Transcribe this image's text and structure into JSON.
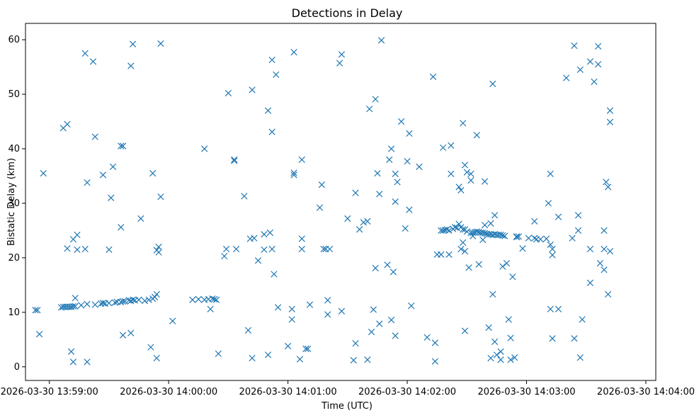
{
  "chart_data": {
    "type": "scatter",
    "title": "Detections in Delay",
    "xlabel": "Time (UTC)",
    "ylabel": "Bistatic Delay (km)",
    "marker": "x",
    "color": "#1f77b4",
    "x_unit": "seconds after 2026-03-30 13:59:00",
    "xlim": [
      -12,
      305
    ],
    "ylim": [
      -2.5,
      63
    ],
    "x_ticks": [
      {
        "value": 0,
        "label": "2026-03-30 13:59:00"
      },
      {
        "value": 60,
        "label": "2026-03-30 14:00:00"
      },
      {
        "value": 120,
        "label": "2026-03-30 14:01:00"
      },
      {
        "value": 180,
        "label": "2026-03-30 14:02:00"
      },
      {
        "value": 240,
        "label": "2026-03-30 14:03:00"
      },
      {
        "value": 300,
        "label": "2026-03-30 14:04:00"
      }
    ],
    "y_ticks": [
      {
        "value": 0,
        "label": "0"
      },
      {
        "value": 10,
        "label": "10"
      },
      {
        "value": 20,
        "label": "20"
      },
      {
        "value": 30,
        "label": "30"
      },
      {
        "value": 40,
        "label": "40"
      },
      {
        "value": 50,
        "label": "50"
      },
      {
        "value": 60,
        "label": "60"
      }
    ],
    "points": [
      [
        -7,
        10.4
      ],
      [
        -6,
        10.4
      ],
      [
        -5,
        6
      ],
      [
        -3,
        35.5
      ],
      [
        7,
        43.8
      ],
      [
        9,
        44.5
      ],
      [
        9,
        21.7
      ],
      [
        11,
        2.8
      ],
      [
        12,
        0.9
      ],
      [
        12,
        23.4
      ],
      [
        13,
        12.6
      ],
      [
        14,
        24.2
      ],
      [
        14,
        21.5
      ],
      [
        18,
        57.5
      ],
      [
        18,
        21.6
      ],
      [
        19,
        33.8
      ],
      [
        19,
        0.9
      ],
      [
        22,
        56
      ],
      [
        23,
        42.2
      ],
      [
        27,
        35.2
      ],
      [
        30,
        21.5
      ],
      [
        31,
        31
      ],
      [
        32,
        36.7
      ],
      [
        36,
        25.6
      ],
      [
        36,
        40.5
      ],
      [
        37,
        40.5
      ],
      [
        37,
        5.8
      ],
      [
        41,
        55.2
      ],
      [
        41,
        6.2
      ],
      [
        42,
        59.2
      ],
      [
        46,
        27.2
      ],
      [
        51,
        3.6
      ],
      [
        52,
        35.5
      ],
      [
        54,
        1.6
      ],
      [
        54,
        21.4
      ],
      [
        55,
        21
      ],
      [
        55,
        22
      ],
      [
        56,
        31.2
      ],
      [
        56,
        59.3
      ],
      [
        62,
        8.4
      ],
      [
        6,
        10.9
      ],
      [
        7,
        11
      ],
      [
        8,
        11
      ],
      [
        9,
        11
      ],
      [
        10,
        11
      ],
      [
        11,
        11
      ],
      [
        12,
        11.1
      ],
      [
        13,
        11.1
      ],
      [
        16,
        11.3
      ],
      [
        19,
        11.5
      ],
      [
        23,
        11.4
      ],
      [
        26,
        11.6
      ],
      [
        27,
        11.7
      ],
      [
        28,
        11.6
      ],
      [
        30,
        11.7
      ],
      [
        33,
        11.8
      ],
      [
        34,
        11.9
      ],
      [
        36,
        11.9
      ],
      [
        37,
        12
      ],
      [
        38,
        12
      ],
      [
        40,
        12.2
      ],
      [
        41,
        12.1
      ],
      [
        42,
        12.3
      ],
      [
        43,
        12.2
      ],
      [
        45,
        12.3
      ],
      [
        48,
        12.1
      ],
      [
        50,
        12.3
      ],
      [
        52,
        12.5
      ],
      [
        53,
        12.8
      ],
      [
        54,
        13.3
      ],
      [
        72,
        12.3
      ],
      [
        75,
        12.4
      ],
      [
        78,
        12.3
      ],
      [
        78,
        40
      ],
      [
        80,
        12.4
      ],
      [
        81,
        10.6
      ],
      [
        82,
        12.5
      ],
      [
        83,
        12.4
      ],
      [
        84,
        12.3
      ],
      [
        85,
        2.4
      ],
      [
        88,
        20.3
      ],
      [
        89,
        21.6
      ],
      [
        90,
        50.2
      ],
      [
        93,
        37.8
      ],
      [
        93,
        38
      ],
      [
        94,
        21.6
      ],
      [
        98,
        31.3
      ],
      [
        100,
        6.7
      ],
      [
        101,
        23.5
      ],
      [
        102,
        50.8
      ],
      [
        102,
        1.6
      ],
      [
        103,
        23.6
      ],
      [
        105,
        19.5
      ],
      [
        108,
        24.3
      ],
      [
        108,
        21.5
      ],
      [
        110,
        47
      ],
      [
        110,
        2.2
      ],
      [
        111,
        24.6
      ],
      [
        112,
        56.3
      ],
      [
        112,
        43.1
      ],
      [
        112,
        21.6
      ],
      [
        113,
        17
      ],
      [
        114,
        53.6
      ],
      [
        115,
        10.9
      ],
      [
        120,
        3.8
      ],
      [
        122,
        8.7
      ],
      [
        122,
        10.6
      ],
      [
        123,
        35.2
      ],
      [
        123,
        35.6
      ],
      [
        123,
        57.7
      ],
      [
        126,
        1.4
      ],
      [
        127,
        23.5
      ],
      [
        127,
        21.6
      ],
      [
        127,
        38
      ],
      [
        129,
        3.3
      ],
      [
        130,
        3.3
      ],
      [
        131,
        11.4
      ],
      [
        136,
        29.2
      ],
      [
        137,
        33.4
      ],
      [
        138,
        21.6
      ],
      [
        139,
        21.6
      ],
      [
        140,
        12.2
      ],
      [
        140,
        9.6
      ],
      [
        141,
        21.6
      ],
      [
        146,
        55.7
      ],
      [
        147,
        57.3
      ],
      [
        147,
        10.2
      ],
      [
        150,
        27.2
      ],
      [
        153,
        1.2
      ],
      [
        154,
        31.9
      ],
      [
        154,
        4.3
      ],
      [
        156,
        25.2
      ],
      [
        158,
        26.5
      ],
      [
        160,
        26.7
      ],
      [
        160,
        1.3
      ],
      [
        161,
        47.3
      ],
      [
        162,
        6.4
      ],
      [
        163,
        10.5
      ],
      [
        164,
        49.1
      ],
      [
        164,
        18.1
      ],
      [
        165,
        35.5
      ],
      [
        166,
        31.7
      ],
      [
        167,
        59.9
      ],
      [
        166,
        7.9
      ],
      [
        170,
        18.7
      ],
      [
        171,
        38
      ],
      [
        172,
        40
      ],
      [
        172,
        8.6
      ],
      [
        173,
        17.4
      ],
      [
        174,
        30.3
      ],
      [
        174,
        35.4
      ],
      [
        174,
        5.7
      ],
      [
        175,
        33.9
      ],
      [
        177,
        45
      ],
      [
        179,
        25.4
      ],
      [
        180,
        37.7
      ],
      [
        181,
        28.8
      ],
      [
        181,
        42.8
      ],
      [
        182,
        11.2
      ],
      [
        186,
        36.7
      ],
      [
        190,
        5.4
      ],
      [
        193,
        53.2
      ],
      [
        194,
        1
      ],
      [
        194,
        4.4
      ],
      [
        195,
        20.6
      ],
      [
        197,
        20.6
      ],
      [
        198,
        40.2
      ],
      [
        201,
        20.6
      ],
      [
        202,
        40.6
      ],
      [
        202,
        35.4
      ],
      [
        206,
        33
      ],
      [
        207,
        32.4
      ],
      [
        207,
        21.6
      ],
      [
        208,
        44.7
      ],
      [
        208,
        22.8
      ],
      [
        209,
        37
      ],
      [
        209,
        21.2
      ],
      [
        209,
        6.6
      ],
      [
        210,
        35.7
      ],
      [
        211,
        18.2
      ],
      [
        212,
        34.2
      ],
      [
        212,
        35.4
      ],
      [
        213,
        24
      ],
      [
        215,
        42.5
      ],
      [
        216,
        18.8
      ],
      [
        218,
        23.3
      ],
      [
        219,
        34
      ],
      [
        221,
        7.2
      ],
      [
        222,
        1.6
      ],
      [
        223,
        13.3
      ],
      [
        223,
        51.9
      ],
      [
        224,
        4.6
      ],
      [
        224,
        27.8
      ],
      [
        225,
        2.2
      ],
      [
        227,
        1.3
      ],
      [
        227,
        2.8
      ],
      [
        228,
        18.4
      ],
      [
        230,
        19
      ],
      [
        231,
        8.7
      ],
      [
        232,
        5.3
      ],
      [
        232,
        1.3
      ],
      [
        233,
        16.5
      ],
      [
        234,
        1.7
      ],
      [
        235,
        23.9
      ],
      [
        238,
        21.7
      ],
      [
        241,
        23.6
      ],
      [
        244,
        26.7
      ],
      [
        250,
        23.5
      ],
      [
        251,
        30
      ],
      [
        252,
        35.4
      ],
      [
        252,
        22.4
      ],
      [
        252,
        10.6
      ],
      [
        253,
        21.6
      ],
      [
        253,
        5.2
      ],
      [
        253,
        20.5
      ],
      [
        256,
        27.5
      ],
      [
        256,
        10.6
      ],
      [
        260,
        53
      ],
      [
        263,
        23.6
      ],
      [
        264,
        58.9
      ],
      [
        264,
        5.2
      ],
      [
        266,
        25
      ],
      [
        266,
        27.8
      ],
      [
        267,
        54.5
      ],
      [
        267,
        1.7
      ],
      [
        268,
        8.7
      ],
      [
        272,
        56
      ],
      [
        272,
        15.4
      ],
      [
        272,
        21.6
      ],
      [
        274,
        52.3
      ],
      [
        276,
        58.8
      ],
      [
        276,
        55.5
      ],
      [
        277,
        19
      ],
      [
        279,
        25
      ],
      [
        279,
        21.6
      ],
      [
        279,
        17.8
      ],
      [
        280,
        33.9
      ],
      [
        281,
        33
      ],
      [
        281,
        13.3
      ],
      [
        282,
        47
      ],
      [
        282,
        44.9
      ],
      [
        282,
        21.2
      ],
      [
        197,
        25
      ],
      [
        198,
        25
      ],
      [
        199,
        25.1
      ],
      [
        200,
        25.2
      ],
      [
        201,
        25
      ],
      [
        203,
        25.3
      ],
      [
        204,
        25.6
      ],
      [
        205,
        25.5
      ],
      [
        206,
        26.2
      ],
      [
        207,
        25.6
      ],
      [
        208,
        25.2
      ],
      [
        209,
        25.2
      ],
      [
        210,
        24.8
      ],
      [
        212,
        24.6
      ],
      [
        213,
        24.6
      ],
      [
        214,
        24.7
      ],
      [
        215,
        24.8
      ],
      [
        216,
        24.7
      ],
      [
        217,
        24.6
      ],
      [
        218,
        24.6
      ],
      [
        219,
        24.5
      ],
      [
        220,
        24.4
      ],
      [
        221,
        24.3
      ],
      [
        222,
        24.3
      ],
      [
        223,
        24.2
      ],
      [
        224,
        24.3
      ],
      [
        225,
        24.2
      ],
      [
        226,
        24.2
      ],
      [
        227,
        24.2
      ],
      [
        228,
        24.1
      ],
      [
        229,
        24
      ],
      [
        235,
        23.8
      ],
      [
        236,
        23.9
      ],
      [
        244,
        23.6
      ],
      [
        245,
        23.4
      ],
      [
        247,
        23.4
      ],
      [
        222,
        26.3
      ],
      [
        219,
        26
      ]
    ]
  }
}
